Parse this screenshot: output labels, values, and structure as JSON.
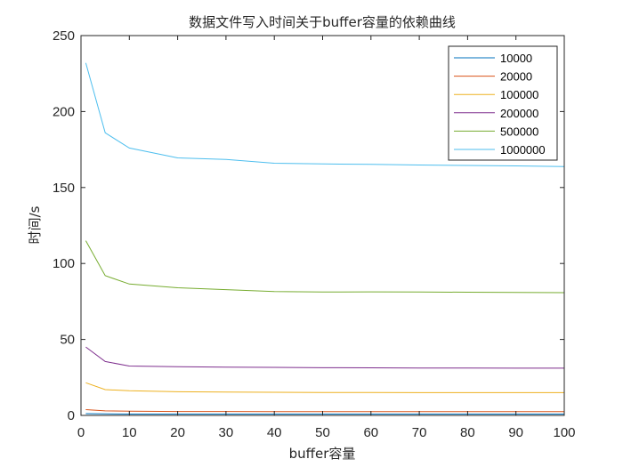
{
  "chart_data": {
    "type": "line",
    "title": "数据文件写入时间关于buffer容量的依赖曲线",
    "xlabel": "buffer容量",
    "ylabel": "时间/s",
    "xlim": [
      0,
      100
    ],
    "ylim": [
      0,
      250
    ],
    "xticks": [
      0,
      10,
      20,
      30,
      40,
      50,
      60,
      70,
      80,
      90,
      100
    ],
    "yticks": [
      0,
      50,
      100,
      150,
      200,
      250
    ],
    "grid": false,
    "legend_position": "top-right",
    "x": [
      1,
      5,
      10,
      20,
      30,
      40,
      50,
      60,
      70,
      80,
      90,
      100
    ],
    "series": [
      {
        "name": "10000",
        "color": "#0072BD",
        "values": [
          1.2,
          1.0,
          0.9,
          0.9,
          0.9,
          0.85,
          0.85,
          0.85,
          0.85,
          0.85,
          0.85,
          0.85
        ]
      },
      {
        "name": "20000",
        "color": "#D95319",
        "values": [
          3.8,
          3.0,
          2.8,
          2.6,
          2.6,
          2.5,
          2.5,
          2.5,
          2.5,
          2.5,
          2.5,
          2.5
        ]
      },
      {
        "name": "100000",
        "color": "#EDB120",
        "values": [
          21.5,
          17.0,
          16.2,
          15.6,
          15.4,
          15.2,
          15.1,
          15.1,
          15.0,
          15.0,
          15.0,
          15.0
        ]
      },
      {
        "name": "200000",
        "color": "#7E2F8E",
        "values": [
          45.0,
          35.5,
          32.5,
          32.0,
          31.8,
          31.6,
          31.4,
          31.3,
          31.2,
          31.2,
          31.1,
          31.1
        ]
      },
      {
        "name": "500000",
        "color": "#77AC30",
        "values": [
          115.0,
          92.0,
          86.5,
          84.0,
          82.8,
          81.5,
          81.2,
          81.3,
          81.2,
          81.1,
          81.0,
          80.8
        ]
      },
      {
        "name": "1000000",
        "color": "#4DBEEE",
        "values": [
          232.0,
          186.0,
          176.0,
          169.5,
          168.5,
          166.0,
          165.5,
          165.2,
          164.8,
          164.5,
          164.2,
          163.8
        ]
      }
    ]
  }
}
